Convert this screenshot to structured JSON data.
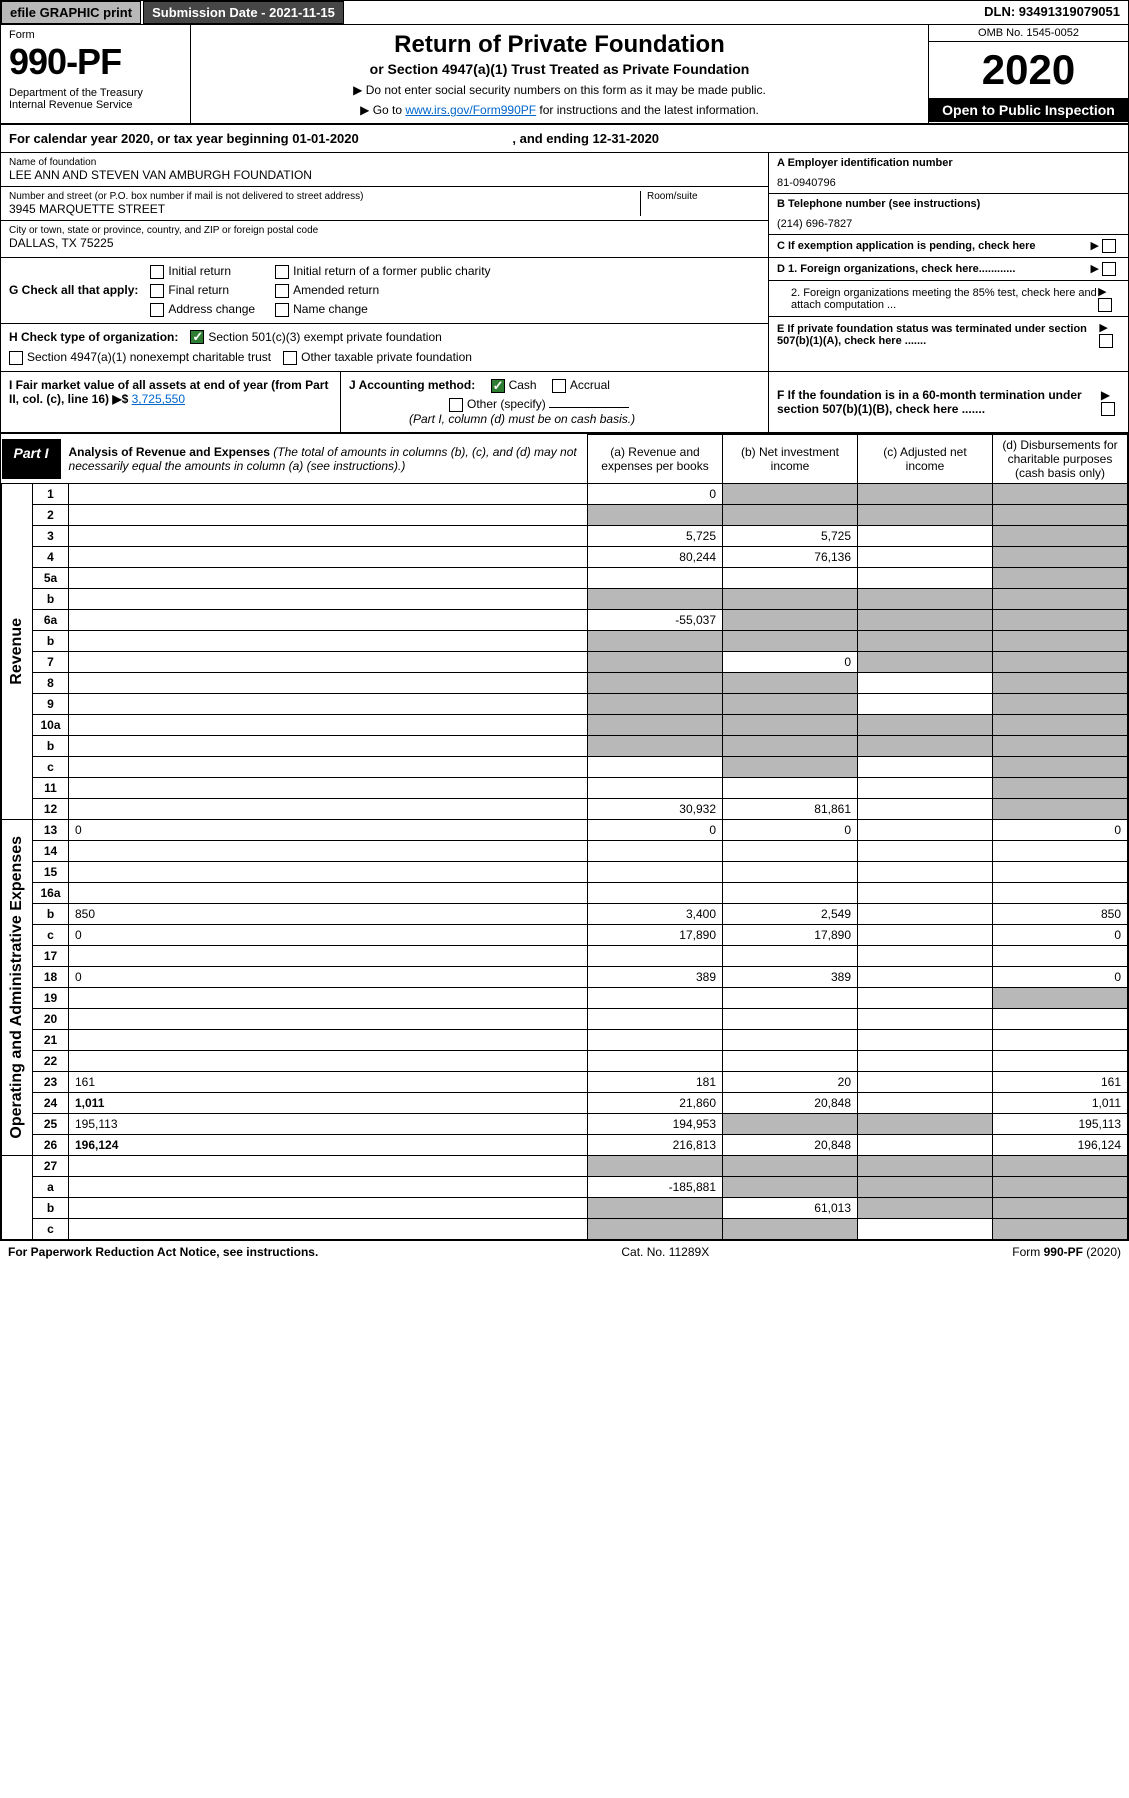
{
  "top": {
    "efile": "efile GRAPHIC print",
    "submission": "Submission Date - 2021-11-15",
    "dln": "DLN: 93491319079051"
  },
  "header": {
    "form_label": "Form",
    "form_num": "990-PF",
    "dept": "Department of the Treasury\nInternal Revenue Service",
    "title": "Return of Private Foundation",
    "subtitle": "or Section 4947(a)(1) Trust Treated as Private Foundation",
    "inst1": "▶ Do not enter social security numbers on this form as it may be made public.",
    "inst2_pre": "▶ Go to ",
    "inst2_link": "www.irs.gov/Form990PF",
    "inst2_post": " for instructions and the latest information.",
    "omb": "OMB No. 1545-0052",
    "year": "2020",
    "open": "Open to Public Inspection"
  },
  "tax_year": {
    "text_pre": "For calendar year 2020, or tax year beginning ",
    "begin": "01-01-2020",
    "text_mid": " , and ending ",
    "end": "12-31-2020"
  },
  "foundation": {
    "name_label": "Name of foundation",
    "name": "LEE ANN AND STEVEN VAN AMBURGH FOUNDATION",
    "addr_label": "Number and street (or P.O. box number if mail is not delivered to street address)",
    "addr": "3945 MARQUETTE STREET",
    "room_label": "Room/suite",
    "city_label": "City or town, state or province, country, and ZIP or foreign postal code",
    "city": "DALLAS, TX  75225"
  },
  "right_info": {
    "a_label": "A Employer identification number",
    "a_val": "81-0940796",
    "b_label": "B Telephone number (see instructions)",
    "b_val": "(214) 696-7827",
    "c_label": "C If exemption application is pending, check here",
    "d1": "D 1. Foreign organizations, check here............",
    "d2": "2. Foreign organizations meeting the 85% test, check here and attach computation ...",
    "e": "E  If private foundation status was terminated under section 507(b)(1)(A), check here .......",
    "f": "F  If the foundation is in a 60-month termination under section 507(b)(1)(B), check here .......",
    "arrow": "▶"
  },
  "g": {
    "label": "G Check all that apply:",
    "opts": [
      "Initial return",
      "Final return",
      "Address change",
      "Initial return of a former public charity",
      "Amended return",
      "Name change"
    ]
  },
  "h": {
    "label": "H Check type of organization:",
    "opt1": "Section 501(c)(3) exempt private foundation",
    "opt2": "Section 4947(a)(1) nonexempt charitable trust",
    "opt3": "Other taxable private foundation"
  },
  "i": {
    "label": "I Fair market value of all assets at end of year (from Part II, col. (c), line 16) ▶$",
    "val": "3,725,550"
  },
  "j": {
    "label": "J Accounting method:",
    "cash": "Cash",
    "accrual": "Accrual",
    "other": "Other (specify)",
    "note": "(Part I, column (d) must be on cash basis.)"
  },
  "part1": {
    "tag": "Part I",
    "title": "Analysis of Revenue and Expenses",
    "note": "(The total of amounts in columns (b), (c), and (d) may not necessarily equal the amounts in column (a) (see instructions).)",
    "col_a": "(a) Revenue and expenses per books",
    "col_b": "(b) Net investment income",
    "col_c": "(c) Adjusted net income",
    "col_d": "(d) Disbursements for charitable purposes (cash basis only)"
  },
  "side": {
    "revenue": "Revenue",
    "expenses": "Operating and Administrative Expenses"
  },
  "rows": [
    {
      "n": "1",
      "d": "",
      "a": "0",
      "b": "",
      "c": "",
      "grey_b": true,
      "grey_c": true,
      "grey_d": true
    },
    {
      "n": "2",
      "d": "",
      "a": "",
      "b": "",
      "c": "",
      "grey_a": true,
      "grey_b": true,
      "grey_c": true,
      "grey_d": true,
      "checkmark": true
    },
    {
      "n": "3",
      "d": "",
      "a": "5,725",
      "b": "5,725",
      "c": "",
      "grey_d": true
    },
    {
      "n": "4",
      "d": "",
      "a": "80,244",
      "b": "76,136",
      "c": "",
      "grey_d": true
    },
    {
      "n": "5a",
      "d": "",
      "a": "",
      "b": "",
      "c": "",
      "grey_d": true
    },
    {
      "n": "b",
      "d": "",
      "a": "",
      "b": "",
      "c": "",
      "grey_a": true,
      "grey_b": true,
      "grey_c": true,
      "grey_d": true
    },
    {
      "n": "6a",
      "d": "",
      "a": "-55,037",
      "b": "",
      "c": "",
      "grey_b": true,
      "grey_c": true,
      "grey_d": true
    },
    {
      "n": "b",
      "d": "",
      "a": "",
      "b": "",
      "c": "",
      "grey_a": true,
      "grey_b": true,
      "grey_c": true,
      "grey_d": true
    },
    {
      "n": "7",
      "d": "",
      "a": "",
      "b": "0",
      "c": "",
      "grey_a": true,
      "grey_c": true,
      "grey_d": true
    },
    {
      "n": "8",
      "d": "",
      "a": "",
      "b": "",
      "c": "",
      "grey_a": true,
      "grey_b": true,
      "grey_d": true
    },
    {
      "n": "9",
      "d": "",
      "a": "",
      "b": "",
      "c": "",
      "grey_a": true,
      "grey_b": true,
      "grey_d": true
    },
    {
      "n": "10a",
      "d": "",
      "a": "",
      "b": "",
      "c": "",
      "grey_a": true,
      "grey_b": true,
      "grey_c": true,
      "grey_d": true
    },
    {
      "n": "b",
      "d": "",
      "a": "",
      "b": "",
      "c": "",
      "grey_a": true,
      "grey_b": true,
      "grey_c": true,
      "grey_d": true
    },
    {
      "n": "c",
      "d": "",
      "a": "",
      "b": "",
      "c": "",
      "grey_b": true,
      "grey_d": true
    },
    {
      "n": "11",
      "d": "",
      "a": "",
      "b": "",
      "c": "",
      "grey_d": true
    },
    {
      "n": "12",
      "d": "",
      "a": "30,932",
      "b": "81,861",
      "c": "",
      "bold": true,
      "grey_d": true
    }
  ],
  "exp_rows": [
    {
      "n": "13",
      "d": "0",
      "a": "0",
      "b": "0",
      "c": ""
    },
    {
      "n": "14",
      "d": "",
      "a": "",
      "b": "",
      "c": ""
    },
    {
      "n": "15",
      "d": "",
      "a": "",
      "b": "",
      "c": ""
    },
    {
      "n": "16a",
      "d": "",
      "a": "",
      "b": "",
      "c": ""
    },
    {
      "n": "b",
      "d": "850",
      "a": "3,400",
      "b": "2,549",
      "c": ""
    },
    {
      "n": "c",
      "d": "0",
      "a": "17,890",
      "b": "17,890",
      "c": ""
    },
    {
      "n": "17",
      "d": "",
      "a": "",
      "b": "",
      "c": ""
    },
    {
      "n": "18",
      "d": "0",
      "a": "389",
      "b": "389",
      "c": ""
    },
    {
      "n": "19",
      "d": "",
      "a": "",
      "b": "",
      "c": "",
      "grey_d": true
    },
    {
      "n": "20",
      "d": "",
      "a": "",
      "b": "",
      "c": ""
    },
    {
      "n": "21",
      "d": "",
      "a": "",
      "b": "",
      "c": ""
    },
    {
      "n": "22",
      "d": "",
      "a": "",
      "b": "",
      "c": ""
    },
    {
      "n": "23",
      "d": "161",
      "a": "181",
      "b": "20",
      "c": ""
    },
    {
      "n": "24",
      "d": "1,011",
      "a": "21,860",
      "b": "20,848",
      "c": "",
      "bold": true
    },
    {
      "n": "25",
      "d": "195,113",
      "a": "194,953",
      "b": "",
      "c": "",
      "grey_b": true,
      "grey_c": true
    },
    {
      "n": "26",
      "d": "196,124",
      "a": "216,813",
      "b": "20,848",
      "c": "",
      "bold": true
    }
  ],
  "final_rows": [
    {
      "n": "27",
      "d": "",
      "a": "",
      "b": "",
      "c": "",
      "grey_a": true,
      "grey_b": true,
      "grey_c": true,
      "grey_d": true
    },
    {
      "n": "a",
      "d": "",
      "a": "-185,881",
      "b": "",
      "c": "",
      "bold": true,
      "grey_b": true,
      "grey_c": true,
      "grey_d": true
    },
    {
      "n": "b",
      "d": "",
      "a": "",
      "b": "61,013",
      "c": "",
      "bold": true,
      "grey_a": true,
      "grey_c": true,
      "grey_d": true
    },
    {
      "n": "c",
      "d": "",
      "a": "",
      "b": "",
      "c": "",
      "bold": true,
      "grey_a": true,
      "grey_b": true,
      "grey_d": true
    }
  ],
  "footer": {
    "left": "For Paperwork Reduction Act Notice, see instructions.",
    "mid": "Cat. No. 11289X",
    "right": "Form 990-PF (2020)"
  }
}
